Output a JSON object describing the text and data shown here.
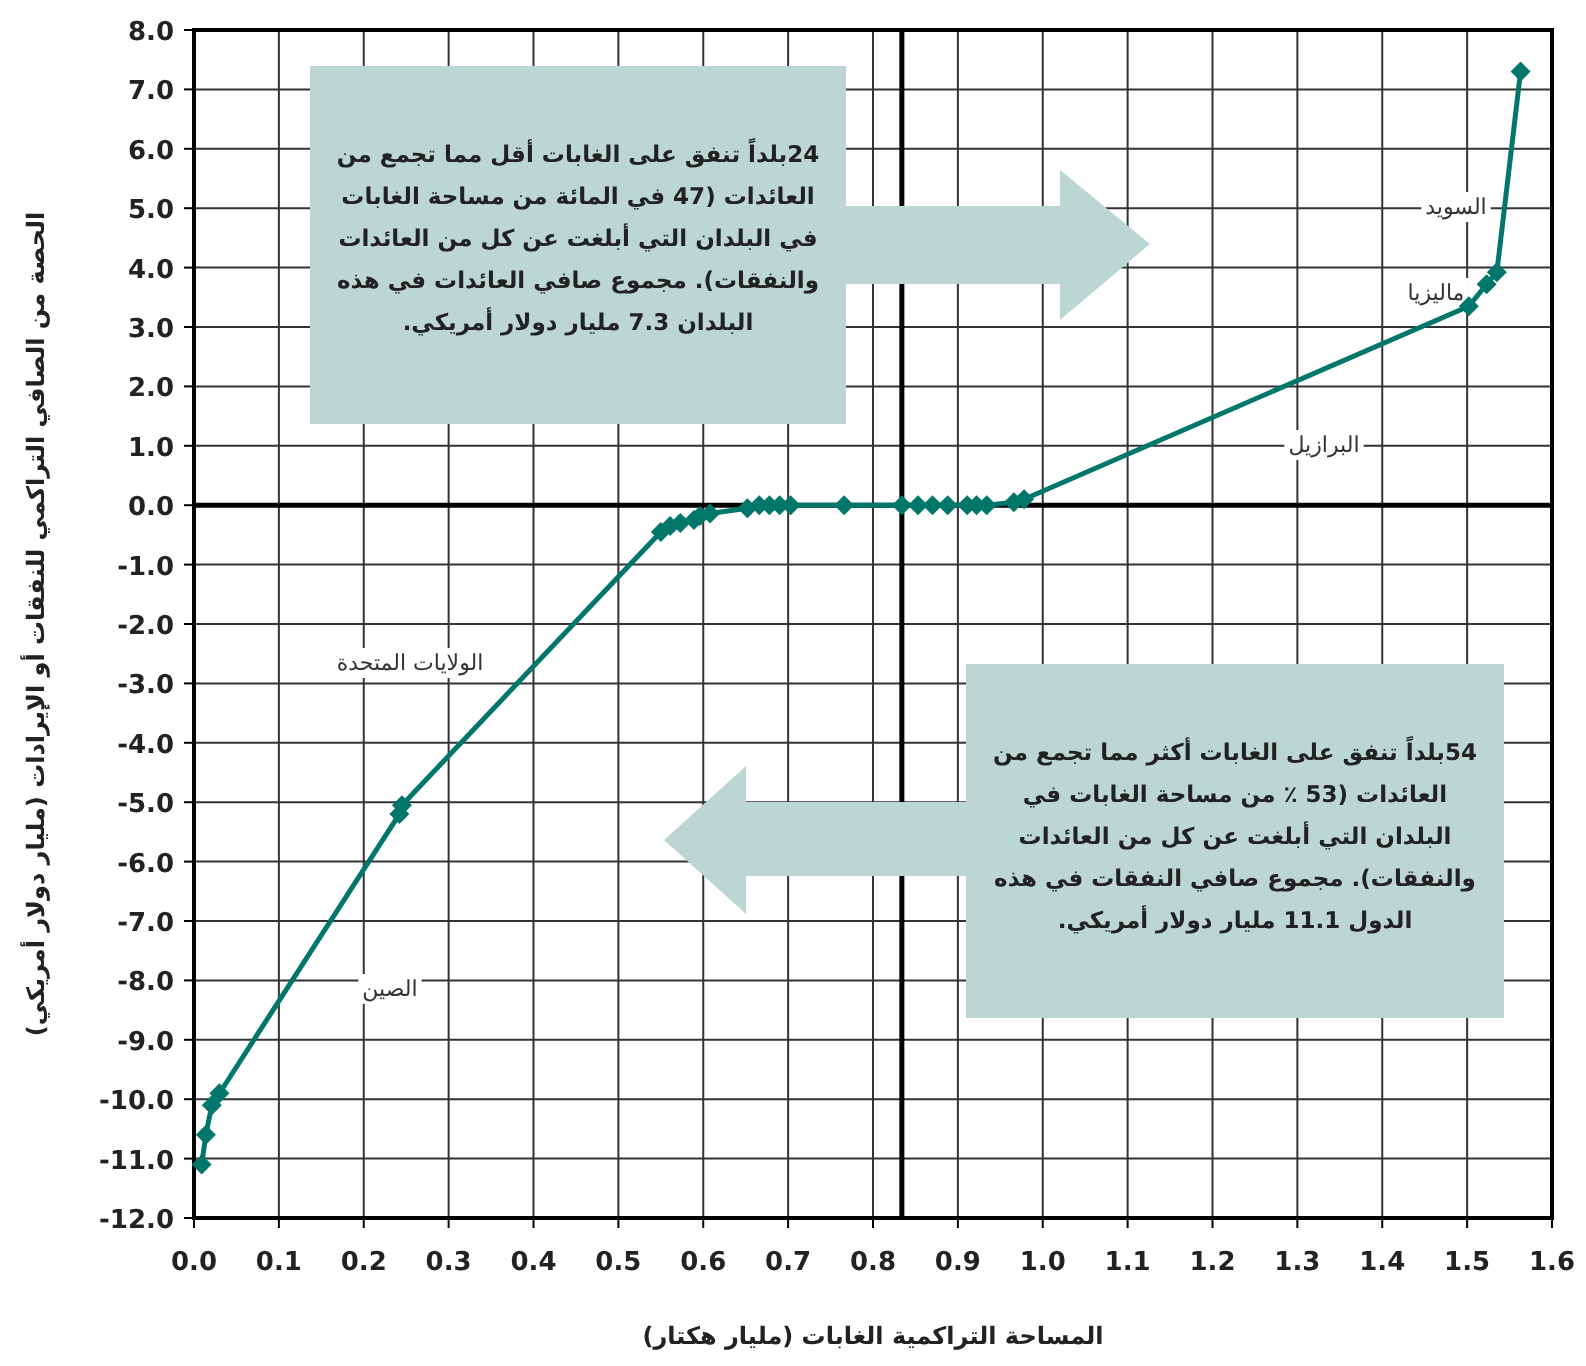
{
  "chart_data": {
    "type": "line",
    "xlabel": "المساحة التراكمية الغابات (مليار هكتار)",
    "ylabel": "الحصة من الصافي التراكمي للنفقات أو الإيرادات (مليار دولار أمريكي)",
    "series": [
      {
        "color": "#00776a",
        "x": [
          0.009,
          0.014,
          0.021,
          0.03,
          0.242,
          0.245,
          0.55,
          0.561,
          0.573,
          0.589,
          0.596,
          0.608,
          0.652,
          0.666,
          0.678,
          0.69,
          0.703,
          0.766,
          0.834,
          0.853,
          0.87,
          0.888,
          0.911,
          0.922,
          0.934,
          0.966,
          0.978,
          1.502,
          1.523,
          1.535,
          1.563
        ],
        "values": [
          -11.1,
          -10.6,
          -10.1,
          -9.9,
          -5.2,
          -5.05,
          -0.45,
          -0.35,
          -0.3,
          -0.25,
          -0.18,
          -0.14,
          -0.05,
          0,
          0,
          0,
          0,
          0,
          0,
          0,
          0,
          0,
          0,
          0,
          0,
          0.05,
          0.1,
          3.35,
          3.72,
          3.92,
          7.3
        ]
      }
    ],
    "xlim": [
      0,
      1.6
    ],
    "ylim": [
      -12,
      8
    ],
    "xticks": [
      {
        "value": 0,
        "label": "0.0"
      },
      {
        "value": 0.1,
        "label": "0.1"
      },
      {
        "value": 0.2,
        "label": "0.2"
      },
      {
        "value": 0.3,
        "label": "0.3"
      },
      {
        "value": 0.4,
        "label": "0.4"
      },
      {
        "value": 0.5,
        "label": "0.5"
      },
      {
        "value": 0.6,
        "label": "0.6"
      },
      {
        "value": 0.7,
        "label": "0.7"
      },
      {
        "value": 0.8,
        "label": "0.8"
      },
      {
        "value": 0.9,
        "label": "0.9"
      },
      {
        "value": 1,
        "label": "1.0"
      },
      {
        "value": 1.1,
        "label": "1.1"
      },
      {
        "value": 1.2,
        "label": "1.2"
      },
      {
        "value": 1.3,
        "label": "1.3"
      },
      {
        "value": 1.4,
        "label": "1.4"
      },
      {
        "value": 1.5,
        "label": "1.5"
      },
      {
        "value": 1.6,
        "label": "1.6"
      }
    ],
    "yticks": [
      {
        "value": 8,
        "label": "8.0"
      },
      {
        "value": 7,
        "label": "7.0"
      },
      {
        "value": 6,
        "label": "6.0"
      },
      {
        "value": 5,
        "label": "5.0"
      },
      {
        "value": 4,
        "label": "4.0"
      },
      {
        "value": 3,
        "label": "3.0"
      },
      {
        "value": 2,
        "label": "2.0"
      },
      {
        "value": 1,
        "label": "1.0"
      },
      {
        "value": 0,
        "label": "0.0"
      },
      {
        "value": -1,
        "label": "-1.0"
      },
      {
        "value": -2,
        "label": "-2.0"
      },
      {
        "value": -3,
        "label": "-3.0"
      },
      {
        "value": -4,
        "label": "-4.0"
      },
      {
        "value": -5,
        "label": "-5.0"
      },
      {
        "value": -6,
        "label": "-6.0"
      },
      {
        "value": -7,
        "label": "-7.0"
      },
      {
        "value": -8,
        "label": "-8.0"
      },
      {
        "value": -9,
        "label": "-9.0"
      },
      {
        "value": -10,
        "label": "-10.0"
      },
      {
        "value": -11,
        "label": "-11.0"
      },
      {
        "value": -12,
        "label": "-12.0"
      }
    ],
    "grid": true,
    "marker": "diamond",
    "line_style": "solid",
    "ref_lines": [
      {
        "axis": "x",
        "value": 0.834,
        "color": "#000000"
      },
      {
        "axis": "y",
        "value": 0,
        "color": "#000000"
      }
    ],
    "annotations": [
      "السويد",
      "ماليزيا",
      "البرازيل",
      "الولايات المتحدة",
      "الصين",
      "24بلداً تنفق على الغابات أقل مما تجمع من العائدات (47 في المائة من مساحة الغابات في البلدان التي أبلغت عن كل من العائدات والنفقات). مجموع صافي العائدات في هذه البلدان 7.3 مليار دولار أمريكي.",
      "54بلداً تنفق على الغابات أكثر مما تجمع من العائدات (53 ٪ من مساحة الغابات في البلدان التي أبلغت عن كل من العائدات والنفقات). مجموع صافي النفقات في هذه الدول 11.1 مليار دولار أمريكي."
    ]
  }
}
